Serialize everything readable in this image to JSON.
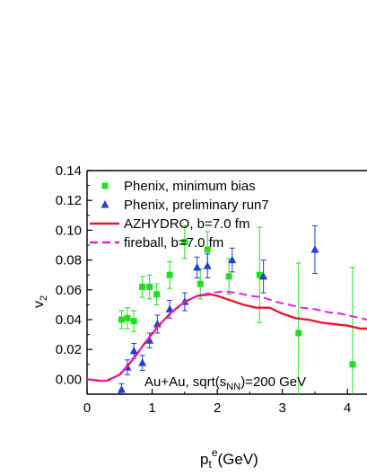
{
  "chart_data": {
    "type": "scatter",
    "xlabel": "p",
    "xlabel_sub": "t",
    "xlabel_sup": "e",
    "xlabel_unit": "(GeV)",
    "ylabel": "v",
    "ylabel_sub": "2",
    "xlim": [
      0,
      4.3
    ],
    "ylim": [
      -0.01,
      0.14
    ],
    "xticks": [
      0,
      1,
      2,
      3,
      4
    ],
    "xtick_labels": [
      "0",
      "1",
      "2",
      "3",
      "4"
    ],
    "yticks": [
      0.0,
      0.02,
      0.04,
      0.06,
      0.08,
      0.1,
      0.12,
      0.14
    ],
    "ytick_labels": [
      "0.00",
      "0.02",
      "0.04",
      "0.06",
      "0.08",
      "0.10",
      "0.12",
      "0.14"
    ],
    "grid": false,
    "legend_position": "top-left",
    "annotation": {
      "prefix": "Au+Au, sqrt(s",
      "sub": "NN",
      "suffix": ")=200 GeV"
    },
    "series": [
      {
        "name": "Phenix, minimum bias",
        "kind": "points",
        "marker": "square",
        "color": "#22dd22",
        "x": [
          0.53,
          0.62,
          0.72,
          0.85,
          0.96,
          1.07,
          1.27,
          1.5,
          1.74,
          1.85,
          2.18,
          2.65,
          3.25,
          4.08
        ],
        "y": [
          0.04,
          0.041,
          0.039,
          0.062,
          0.062,
          0.057,
          0.07,
          0.092,
          0.064,
          0.087,
          0.069,
          0.07,
          0.031,
          0.01
        ],
        "err": [
          0.006,
          0.007,
          0.007,
          0.007,
          0.008,
          0.007,
          0.009,
          0.011,
          0.01,
          0.012,
          0.012,
          0.032,
          0.047,
          0.065
        ]
      },
      {
        "name": "Phenix, preliminary run7",
        "kind": "points",
        "marker": "triangle",
        "color": "#1f3fd8",
        "x": [
          0.53,
          0.62,
          0.72,
          0.85,
          0.96,
          1.08,
          1.27,
          1.5,
          1.69,
          1.85,
          2.23,
          2.71,
          3.5
        ],
        "y": [
          -0.007,
          0.008,
          0.019,
          0.011,
          0.026,
          0.037,
          0.047,
          0.052,
          0.075,
          0.076,
          0.08,
          0.069,
          0.087
        ],
        "err": [
          0.004,
          0.005,
          0.005,
          0.005,
          0.005,
          0.006,
          0.006,
          0.006,
          0.007,
          0.008,
          0.008,
          0.011,
          0.016
        ]
      },
      {
        "name": "AZHYDRO, b=7.0 fm",
        "kind": "line",
        "dash": "solid",
        "color": "#e8192c",
        "x": [
          0.0,
          0.2,
          0.3,
          0.5,
          0.7,
          0.9,
          1.1,
          1.3,
          1.5,
          1.7,
          1.9,
          2.0,
          2.2,
          2.4,
          2.6,
          2.8,
          3.0,
          3.2,
          3.4,
          3.6,
          3.8,
          4.0,
          4.2,
          4.3
        ],
        "y": [
          0.0,
          -0.001,
          -0.001,
          0.003,
          0.013,
          0.025,
          0.036,
          0.045,
          0.052,
          0.056,
          0.057,
          0.056,
          0.053,
          0.05,
          0.048,
          0.048,
          0.044,
          0.041,
          0.04,
          0.038,
          0.037,
          0.036,
          0.034,
          0.034
        ]
      },
      {
        "name": "fireball, b=7.0 fm",
        "kind": "line",
        "dash": "dashed",
        "color": "#e020e8",
        "x": [
          0.0,
          0.2,
          0.3,
          0.5,
          0.7,
          0.9,
          1.1,
          1.3,
          1.5,
          1.7,
          1.9,
          2.1,
          2.3,
          2.5,
          2.7,
          2.9,
          3.1,
          3.3,
          3.5,
          3.7,
          3.9,
          4.1,
          4.3
        ],
        "y": [
          0.0,
          -0.001,
          -0.001,
          0.003,
          0.013,
          0.025,
          0.036,
          0.045,
          0.052,
          0.056,
          0.058,
          0.059,
          0.058,
          0.056,
          0.055,
          0.052,
          0.05,
          0.048,
          0.047,
          0.045,
          0.044,
          0.042,
          0.04
        ]
      }
    ]
  }
}
